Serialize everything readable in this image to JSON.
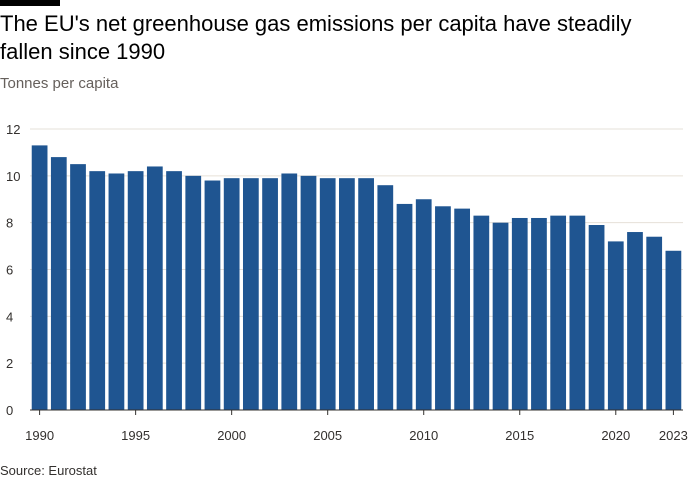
{
  "title": "The EU's net greenhouse gas emissions per capita have steadily fallen since 1990",
  "subtitle": "Tonnes per capita",
  "source": "Source: Eurostat",
  "colors": {
    "bar": "#1f5591",
    "grid": "#e6e0d8",
    "axis": "#33302e"
  },
  "chart_data": {
    "type": "bar",
    "title": "The EU's net greenhouse gas emissions per capita have steadily fallen since 1990",
    "ylabel": "Tonnes per capita",
    "xlabel": "",
    "ylim": [
      0,
      12
    ],
    "yticks": [
      0,
      2,
      4,
      6,
      8,
      10,
      12
    ],
    "xtick_labels": [
      "1990",
      "1995",
      "2000",
      "2005",
      "2010",
      "2015",
      "2020",
      "2023"
    ],
    "grid": true,
    "categories": [
      1990,
      1991,
      1992,
      1993,
      1994,
      1995,
      1996,
      1997,
      1998,
      1999,
      2000,
      2001,
      2002,
      2003,
      2004,
      2005,
      2006,
      2007,
      2008,
      2009,
      2010,
      2011,
      2012,
      2013,
      2014,
      2015,
      2016,
      2017,
      2018,
      2019,
      2020,
      2021,
      2022,
      2023
    ],
    "values": [
      11.3,
      10.8,
      10.5,
      10.2,
      10.1,
      10.2,
      10.4,
      10.2,
      10.0,
      9.8,
      9.9,
      9.9,
      9.9,
      10.1,
      10.0,
      9.9,
      9.9,
      9.9,
      9.6,
      8.8,
      9.0,
      8.7,
      8.6,
      8.3,
      8.0,
      8.2,
      8.2,
      8.3,
      8.3,
      7.9,
      7.2,
      7.6,
      7.4,
      6.8
    ]
  }
}
